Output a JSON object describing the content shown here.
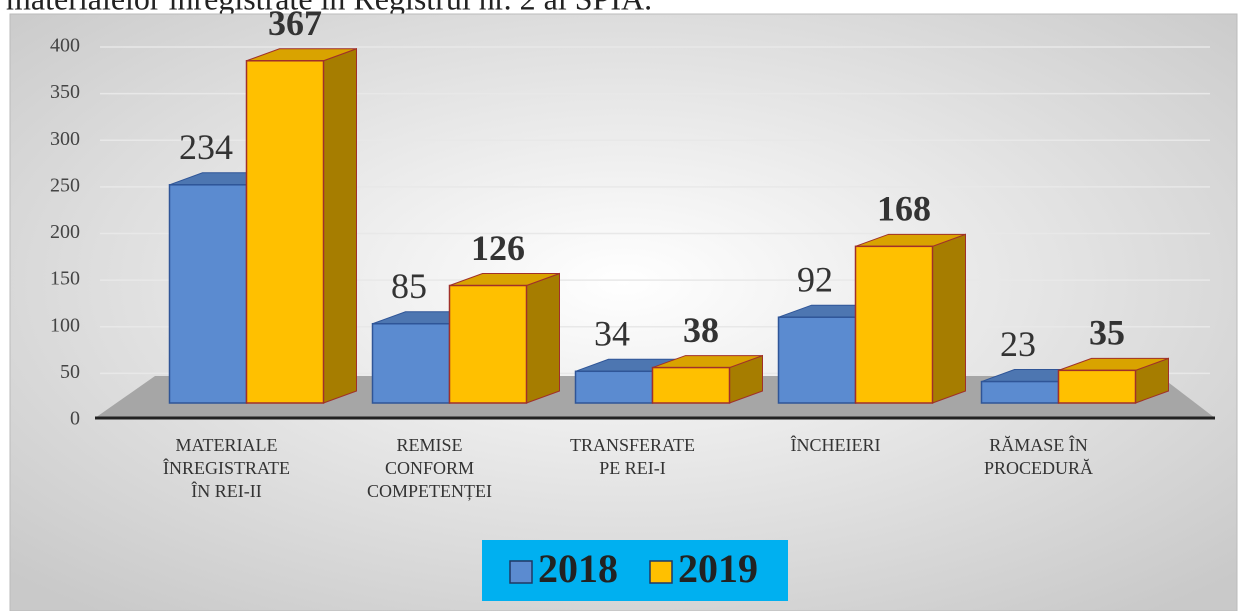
{
  "caption": "materialelor înregistrate în Registrul nr. 2 al SPIA.",
  "chart_data": {
    "type": "bar",
    "categories": [
      [
        "MATERIALE",
        "ÎNREGISTRATE",
        "ÎN REI-II"
      ],
      [
        "REMISE",
        "CONFORM",
        "COMPETENȚEI"
      ],
      [
        "TRANSFERATE",
        "PE REI-I"
      ],
      [
        "ÎNCHEIERI"
      ],
      [
        "RĂMASE ÎN",
        "PROCEDURĂ"
      ]
    ],
    "series": [
      {
        "name": "2018",
        "color": "#5b8bd0",
        "values": [
          234,
          85,
          34,
          92,
          23
        ]
      },
      {
        "name": "2019",
        "color": "#ffc000",
        "values": [
          367,
          126,
          38,
          168,
          35
        ]
      }
    ],
    "ylim": [
      0,
      400
    ],
    "yticks": [
      0,
      50,
      100,
      150,
      200,
      250,
      300,
      350,
      400
    ],
    "grid": true,
    "legend": "bottom"
  }
}
